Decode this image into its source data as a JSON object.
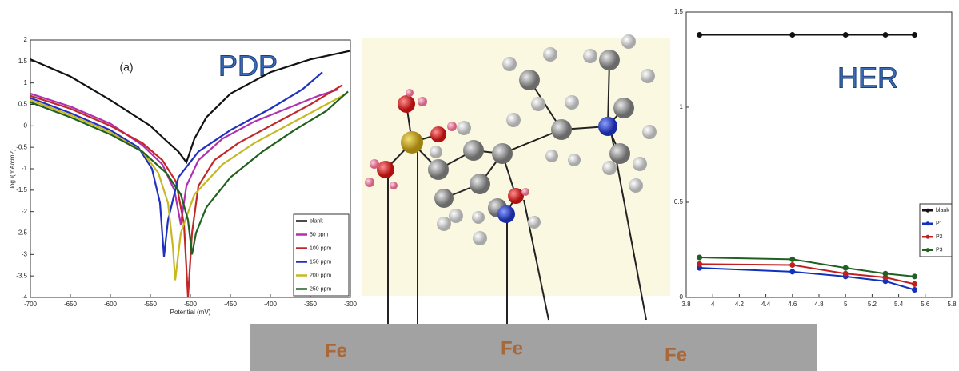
{
  "chart_data": [
    {
      "type": "line",
      "title": "PDP",
      "annotation": "(a)",
      "xlabel": "Potential (mV)",
      "ylabel": "log i(mA/cm2)",
      "xlim": [
        -700,
        -300
      ],
      "xticks": [
        -700,
        -650,
        -600,
        -550,
        -500,
        -450,
        -400,
        -350,
        -300
      ],
      "ylim": [
        -4,
        2
      ],
      "yticks": [
        -4,
        -3.5,
        -3,
        -2.5,
        -2,
        -1.5,
        -1,
        -0.5,
        0,
        0.5,
        1,
        1.5,
        2
      ],
      "legend": "lower right",
      "markers": false,
      "series": [
        {
          "name": "blank",
          "color": "#111111",
          "x": [
            -700,
            -650,
            -600,
            -550,
            -530,
            -515,
            -505,
            -495,
            -480,
            -450,
            -400,
            -350,
            -300
          ],
          "values": [
            1.55,
            1.15,
            0.6,
            0.0,
            -0.35,
            -0.6,
            -0.85,
            -0.3,
            0.2,
            0.75,
            1.25,
            1.55,
            1.75
          ]
        },
        {
          "name": "50 ppm",
          "color": "#b030b0",
          "x": [
            -700,
            -650,
            -600,
            -560,
            -535,
            -520,
            -512,
            -505,
            -490,
            -460,
            -420,
            -380,
            -340,
            -315
          ],
          "values": [
            0.75,
            0.45,
            0.05,
            -0.45,
            -0.9,
            -1.5,
            -2.3,
            -1.4,
            -0.8,
            -0.3,
            0.1,
            0.4,
            0.7,
            0.85
          ]
        },
        {
          "name": "100 ppm",
          "color": "#c0282a",
          "x": [
            -700,
            -650,
            -600,
            -560,
            -535,
            -518,
            -508,
            -503,
            -498,
            -490,
            -470,
            -440,
            -400,
            -350,
            -310
          ],
          "values": [
            0.7,
            0.4,
            0.0,
            -0.4,
            -0.8,
            -1.3,
            -2.3,
            -4.0,
            -2.5,
            -1.4,
            -0.8,
            -0.4,
            0.0,
            0.5,
            0.95
          ]
        },
        {
          "name": "150 ppm",
          "color": "#2030c0",
          "x": [
            -700,
            -650,
            -600,
            -565,
            -548,
            -538,
            -533,
            -528,
            -515,
            -490,
            -450,
            -400,
            -360,
            -335
          ],
          "values": [
            0.65,
            0.3,
            -0.1,
            -0.5,
            -1.0,
            -1.8,
            -3.05,
            -2.2,
            -1.2,
            -0.6,
            -0.1,
            0.4,
            0.85,
            1.25
          ]
        },
        {
          "name": "200 ppm",
          "color": "#c8b820",
          "x": [
            -700,
            -650,
            -600,
            -560,
            -540,
            -528,
            -522,
            -519,
            -512,
            -495,
            -460,
            -420,
            -380,
            -330,
            -305
          ],
          "values": [
            0.6,
            0.25,
            -0.15,
            -0.6,
            -1.1,
            -1.8,
            -2.8,
            -3.6,
            -2.5,
            -1.6,
            -0.9,
            -0.4,
            0.0,
            0.5,
            0.75
          ]
        },
        {
          "name": "250 ppm",
          "color": "#206020",
          "x": [
            -700,
            -650,
            -600,
            -560,
            -530,
            -512,
            -503,
            -498,
            -493,
            -480,
            -450,
            -410,
            -370,
            -330,
            -303
          ],
          "values": [
            0.55,
            0.2,
            -0.2,
            -0.6,
            -1.1,
            -1.6,
            -2.2,
            -3.0,
            -2.5,
            -1.9,
            -1.2,
            -0.6,
            -0.1,
            0.35,
            0.8
          ]
        }
      ]
    },
    {
      "type": "line",
      "title": "HER",
      "x": [
        3.9,
        4.6,
        5.0,
        5.3,
        5.52
      ],
      "xlim": [
        3.8,
        5.8
      ],
      "xticks": [
        3.8,
        4,
        4.2,
        4.4,
        4.6,
        4.8,
        5,
        5.2,
        5.4,
        5.6,
        5.8
      ],
      "ylim": [
        0,
        1.5
      ],
      "yticks": [
        0,
        0.5,
        1,
        1.5
      ],
      "legend": "right",
      "markers": true,
      "series": [
        {
          "name": "blank",
          "color": "#111111",
          "values": [
            1.38,
            1.38,
            1.38,
            1.38,
            1.38
          ]
        },
        {
          "name": "P1",
          "color": "#1030c0",
          "values": [
            0.155,
            0.135,
            0.11,
            0.085,
            0.04
          ]
        },
        {
          "name": "P2",
          "color": "#c02020",
          "values": [
            0.175,
            0.17,
            0.125,
            0.105,
            0.07
          ]
        },
        {
          "name": "P3",
          "color": "#206020",
          "values": [
            0.21,
            0.2,
            0.155,
            0.125,
            0.11
          ]
        }
      ]
    }
  ],
  "surface": {
    "labels": [
      "Fe",
      "Fe",
      "Fe"
    ]
  }
}
